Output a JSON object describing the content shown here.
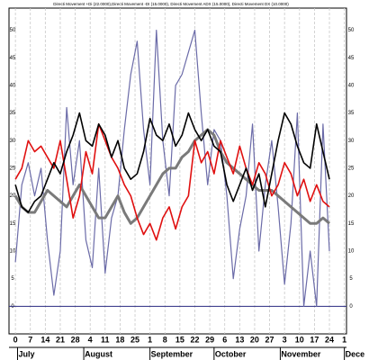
{
  "chart_data": {
    "type": "line",
    "title": "Directi Movement +Di (22.0000),Directi Movement -DI (15.0000), Directi Movement ADX (15.0000), Directi Movement DX (10.0000)",
    "x": [
      0,
      3,
      6,
      9,
      12,
      15,
      18,
      21,
      24,
      27,
      30,
      33,
      36,
      39,
      42,
      45,
      48,
      51,
      54,
      57,
      60,
      63,
      66,
      69,
      72,
      75,
      78,
      81,
      84,
      87,
      90,
      93,
      96,
      99,
      102,
      105,
      108,
      111,
      114,
      117,
      120,
      123,
      126,
      129,
      132,
      135,
      138,
      141,
      144,
      147
    ],
    "series": [
      {
        "name": "Directi Movement DX",
        "color": "#6b6ba8",
        "width": 1.2,
        "values": [
          8,
          22,
          26,
          20,
          25,
          12,
          2,
          10,
          36,
          22,
          30,
          12,
          7,
          25,
          6,
          16,
          20,
          32,
          42,
          48,
          32,
          22,
          50,
          30,
          20,
          40,
          42,
          46,
          50,
          35,
          22,
          32,
          30,
          20,
          5,
          14,
          20,
          33,
          10,
          22,
          30,
          18,
          4,
          15,
          35,
          0,
          10,
          0,
          33,
          10
        ]
      },
      {
        "name": "Directi Movement ADX",
        "color": "#7a7a7a",
        "width": 3,
        "values": [
          20,
          18,
          17,
          17,
          19,
          21,
          20,
          19,
          18,
          20,
          22,
          20,
          18,
          16,
          16,
          18,
          20,
          17,
          15,
          16,
          18,
          20,
          22,
          24,
          25,
          25,
          27,
          28,
          30,
          31,
          32,
          31,
          28,
          26,
          25,
          24,
          23,
          22,
          21,
          21,
          21,
          20,
          19,
          18,
          17,
          16,
          15,
          15,
          16,
          15
        ]
      },
      {
        "name": "Directi Movement -DI",
        "color": "#e01010",
        "width": 1.6,
        "values": [
          23,
          25,
          30,
          28,
          29,
          27,
          25,
          30,
          23,
          16,
          20,
          28,
          24,
          33,
          30,
          27,
          25,
          22,
          20,
          16,
          13,
          15,
          12,
          16,
          18,
          14,
          18,
          20,
          30,
          26,
          28,
          24,
          30,
          27,
          24,
          29,
          25,
          22,
          26,
          24,
          20,
          22,
          26,
          24,
          20,
          23,
          19,
          22,
          19,
          18
        ]
      },
      {
        "name": "Directi Movement +Di",
        "color": "#000000",
        "width": 1.6,
        "values": [
          22,
          18,
          17,
          19,
          20,
          23,
          26,
          24,
          28,
          31,
          35,
          30,
          29,
          33,
          31,
          27,
          30,
          25,
          23,
          24,
          28,
          34,
          31,
          30,
          33,
          29,
          31,
          35,
          32,
          30,
          32,
          29,
          28,
          22,
          19,
          22,
          25,
          21,
          24,
          18,
          24,
          30,
          35,
          33,
          29,
          26,
          25,
          33,
          28,
          23
        ]
      }
    ],
    "xlim": [
      -3,
      155
    ],
    "xticks": [
      {
        "value": 0,
        "label": "0"
      },
      7,
      14,
      21,
      28,
      {
        "value": 35,
        "label": "4"
      },
      {
        "value": 42,
        "label": "11"
      },
      {
        "value": 49,
        "label": "18"
      },
      {
        "value": 56,
        "label": "25"
      },
      {
        "value": 63,
        "label": "1"
      },
      {
        "value": 70,
        "label": "8"
      },
      {
        "value": 77,
        "label": "15"
      },
      {
        "value": 84,
        "label": "22"
      },
      {
        "value": 91,
        "label": "29"
      },
      {
        "value": 98,
        "label": "6"
      },
      {
        "value": 105,
        "label": "13"
      },
      {
        "value": 112,
        "label": "20"
      },
      {
        "value": 119,
        "label": "27"
      },
      {
        "value": 126,
        "label": "3"
      },
      {
        "value": 133,
        "label": "10"
      },
      {
        "value": 140,
        "label": "17"
      },
      {
        "value": 147,
        "label": "24"
      },
      {
        "value": 154,
        "label": "1"
      }
    ],
    "months": [
      {
        "value": 1,
        "label": "July"
      },
      {
        "value": 32,
        "label": "August"
      },
      {
        "value": 63,
        "label": "September"
      },
      {
        "value": 93,
        "label": "October"
      },
      {
        "value": 124,
        "label": "November"
      },
      {
        "value": 154,
        "label": "Dece"
      }
    ],
    "ylim": [
      -5,
      54
    ],
    "yticks": [
      0,
      5,
      10,
      15,
      20,
      25,
      30,
      35,
      40,
      45,
      50
    ],
    "grid": true
  }
}
